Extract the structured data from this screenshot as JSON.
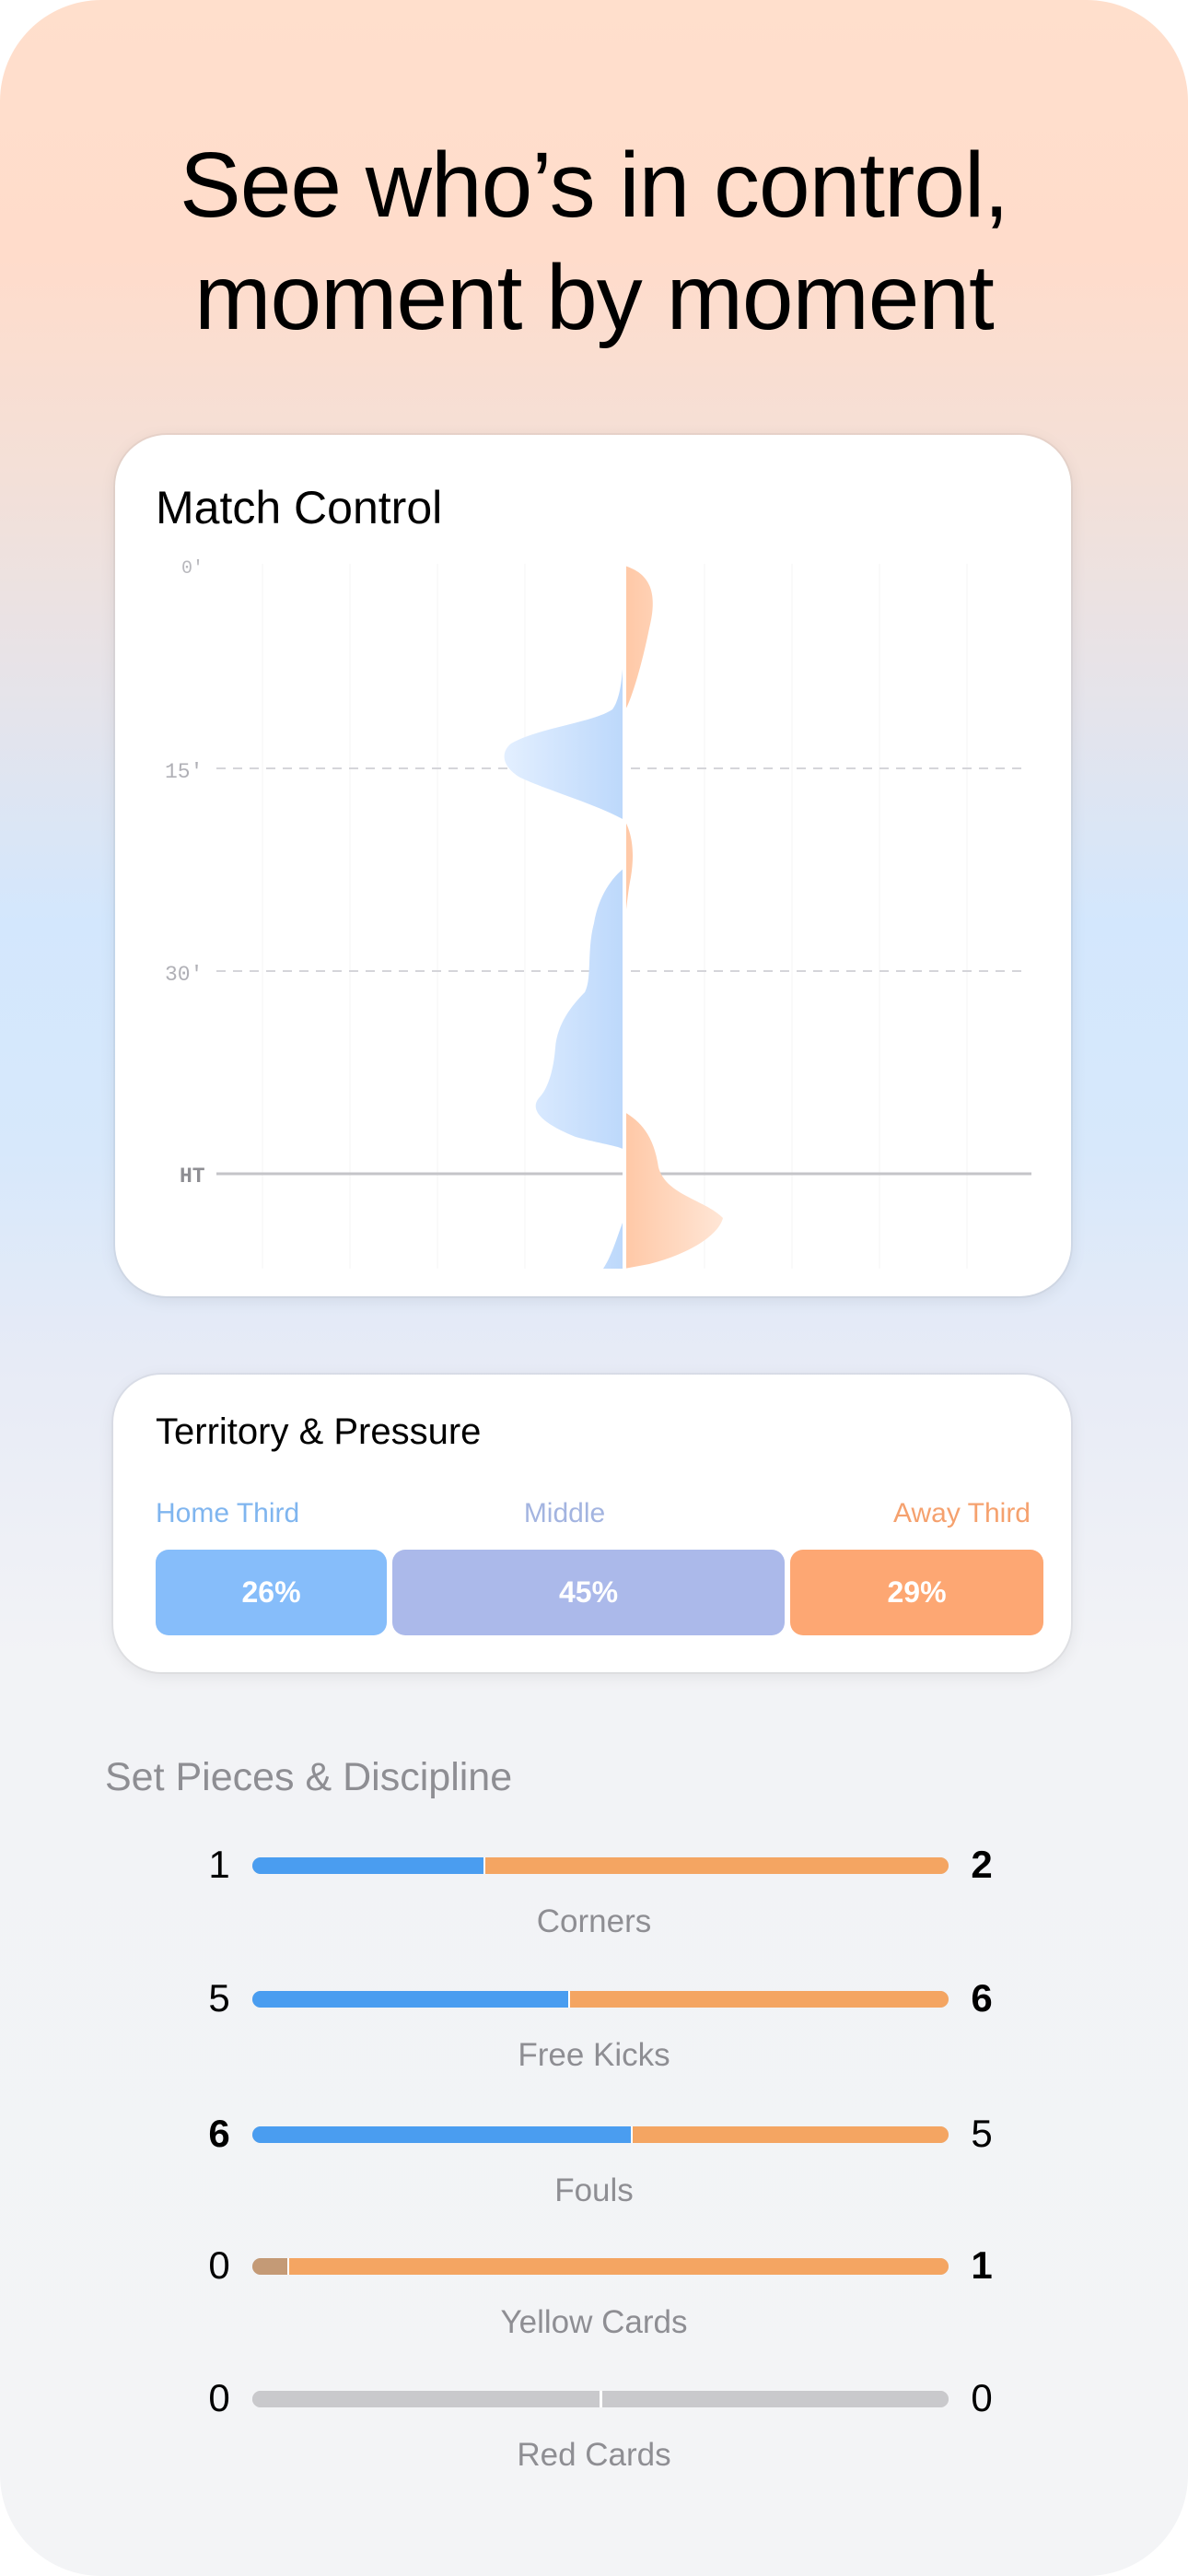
{
  "headline": [
    "See who’s in control,",
    "moment by moment"
  ],
  "match_control": {
    "title": "Match Control",
    "time_labels": [
      "0'",
      "15'",
      "30'",
      "HT"
    ],
    "colors": {
      "home": "#4a9df0",
      "away": "#f7a26b"
    }
  },
  "territory": {
    "title": "Territory & Pressure",
    "zones": [
      {
        "label": "Home Third",
        "value": 26,
        "value_text": "26%",
        "label_color": "#7fb5ef",
        "bar_color": "#86bdfa"
      },
      {
        "label": "Middle",
        "value": 45,
        "value_text": "45%",
        "label_color": "#a3b4e0",
        "bar_color": "#abb9ea"
      },
      {
        "label": "Away Third",
        "value": 29,
        "value_text": "29%",
        "label_color": "#f5a16e",
        "bar_color": "#fda773"
      }
    ]
  },
  "set_pieces": {
    "title": "Set Pieces & Discipline",
    "colors": {
      "home": "#4a9df0",
      "away": "#f4a562",
      "card_home": "#c49a76",
      "empty": "#c9c9cc"
    },
    "stats": [
      {
        "label": "Corners",
        "home": 1,
        "away": 2,
        "home_text": "1",
        "away_text": "2"
      },
      {
        "label": "Free Kicks",
        "home": 5,
        "away": 6,
        "home_text": "5",
        "away_text": "6"
      },
      {
        "label": "Fouls",
        "home": 6,
        "away": 5,
        "home_text": "6",
        "away_text": "5"
      },
      {
        "label": "Yellow Cards",
        "home": 0,
        "away": 1,
        "home_text": "0",
        "away_text": "1"
      },
      {
        "label": "Red Cards",
        "home": 0,
        "away": 0,
        "home_text": "0",
        "away_text": "0"
      }
    ]
  }
}
